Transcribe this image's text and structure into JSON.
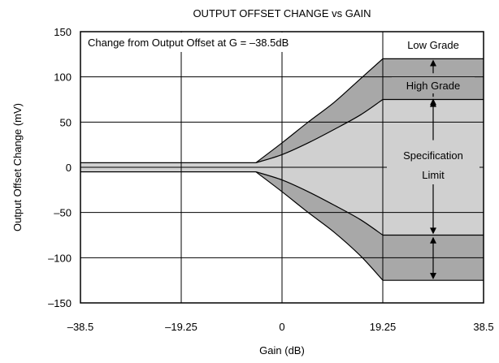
{
  "chart_data": {
    "type": "area",
    "title": "OUTPUT OFFSET CHANGE vs GAIN",
    "xlabel": "Gain (dB)",
    "ylabel": "Output Offset Change (mV)",
    "xlim": [
      -38.5,
      38.5
    ],
    "ylim": [
      -150,
      150
    ],
    "x_ticks": [
      -38.5,
      -19.25,
      0,
      19.25,
      38.5
    ],
    "x_tick_labels": [
      "–38.5",
      "–19.25",
      "0",
      "19.25",
      "38.5"
    ],
    "y_ticks": [
      150,
      100,
      50,
      0,
      -50,
      -100,
      -150
    ],
    "y_tick_labels": [
      "150",
      "100",
      "50",
      "0",
      "–50",
      "–100",
      "–150"
    ],
    "grid": true,
    "colors": {
      "high_grade_fill": "#d0d0d0",
      "low_grade_fill": "#a8a8a8",
      "line": "#000000"
    },
    "series": [
      {
        "name": "High Grade",
        "x": [
          -38.5,
          -5,
          0,
          5,
          10,
          15,
          19.25,
          38.5
        ],
        "upper": [
          5,
          5,
          14,
          27,
          42,
          58,
          75,
          75
        ],
        "lower": [
          -5,
          -5,
          -14,
          -27,
          -42,
          -58,
          -75,
          -75
        ]
      },
      {
        "name": "Low Grade",
        "x": [
          -38.5,
          -5,
          0,
          5,
          10,
          15,
          19.25,
          38.5
        ],
        "upper": [
          5,
          5,
          27,
          50,
          72,
          98,
          120,
          120
        ],
        "lower": [
          -5,
          -5,
          -27,
          -50,
          -72,
          -98,
          -125,
          -125
        ]
      }
    ],
    "annotations": {
      "box_label": "Change from Output Offset at G = –38.5dB",
      "low_grade": "Low Grade",
      "high_grade": "High Grade",
      "spec_line1": "Specification",
      "spec_line2": "Limit"
    }
  }
}
